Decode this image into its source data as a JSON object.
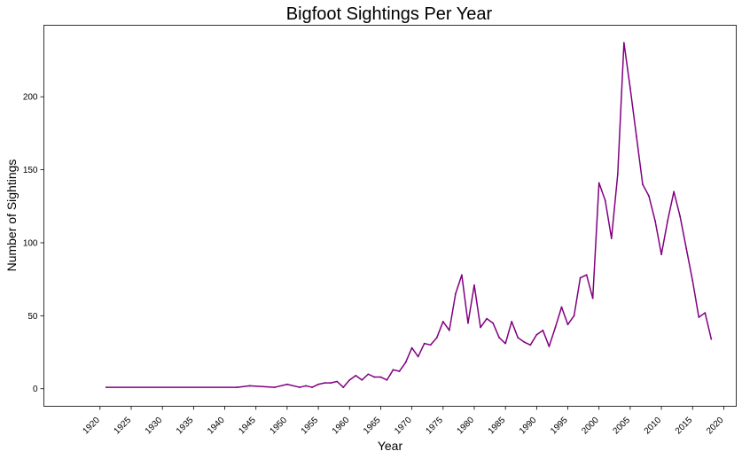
{
  "chart_data": {
    "type": "line",
    "title": "Bigfoot Sightings Per Year",
    "xlabel": "Year",
    "ylabel": "Number of Sightings",
    "xlim": [
      1911,
      2022
    ],
    "ylim": [
      -12,
      249
    ],
    "xticks": [
      1920,
      1925,
      1930,
      1935,
      1940,
      1945,
      1950,
      1955,
      1960,
      1965,
      1970,
      1975,
      1980,
      1985,
      1990,
      1995,
      2000,
      2005,
      2010,
      2015,
      2020
    ],
    "yticks": [
      0,
      50,
      100,
      150,
      200
    ],
    "grid": false,
    "line_color": "#800080",
    "series": [
      {
        "x": [
          1921,
          1942,
          1944,
          1948,
          1950,
          1952,
          1953,
          1954,
          1955,
          1956,
          1957,
          1958,
          1959,
          1960,
          1961,
          1962,
          1963,
          1964,
          1965,
          1966,
          1967,
          1968,
          1969,
          1970,
          1971,
          1972,
          1973,
          1974,
          1975,
          1976,
          1977,
          1978,
          1979,
          1980,
          1981,
          1982,
          1983,
          1984,
          1985,
          1986,
          1987,
          1988,
          1989,
          1990,
          1991,
          1992,
          1993,
          1994,
          1995,
          1996,
          1997,
          1998,
          1999,
          2000,
          2001,
          2002,
          2003,
          2004,
          2005,
          2006,
          2007,
          2008,
          2009,
          2010,
          2011,
          2012,
          2013,
          2014,
          2015,
          2016,
          2017,
          2018
        ],
        "values": [
          1,
          1,
          2,
          1,
          3,
          1,
          2,
          1,
          3,
          4,
          4,
          5,
          1,
          6,
          9,
          6,
          10,
          8,
          8,
          6,
          13,
          12,
          18,
          28,
          22,
          31,
          30,
          35,
          46,
          40,
          65,
          78,
          45,
          71,
          42,
          48,
          45,
          35,
          31,
          46,
          35,
          32,
          30,
          37,
          40,
          29,
          42,
          56,
          44,
          50,
          76,
          78,
          62,
          141,
          129,
          103,
          147,
          237,
          206,
          173,
          140,
          132,
          115,
          92,
          115,
          135,
          118,
          96,
          74,
          49,
          52,
          34
        ]
      }
    ]
  }
}
